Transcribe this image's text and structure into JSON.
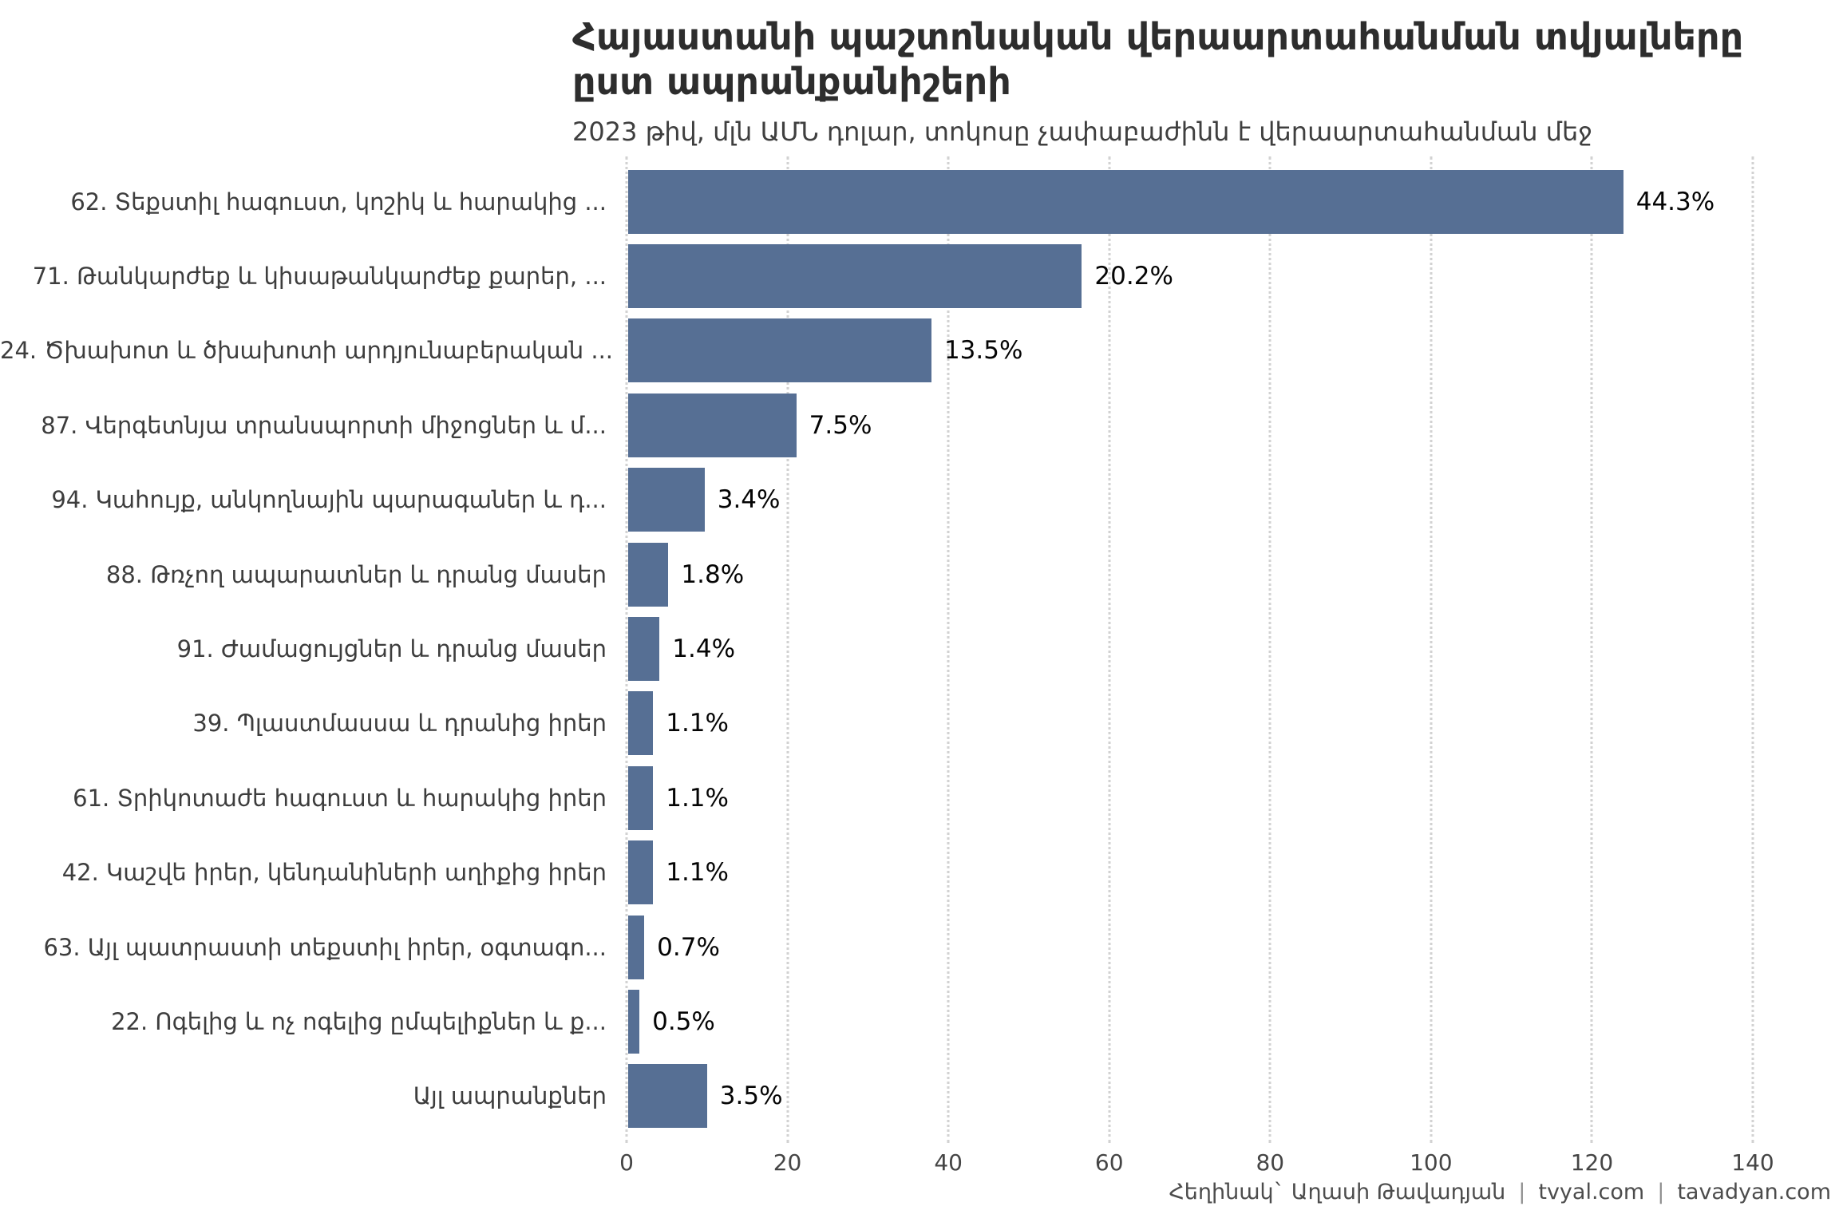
{
  "page": {
    "background": "#ffffff"
  },
  "header": {
    "title_line1": "Հայաստանի պաշտոնական վերաարտահանման տվյալները",
    "title_line2": "ըստ ապրանքանիշերի",
    "subtitle": "2023 թիվ, մլն ԱՄՆ դոլար, տոկոսը չափաբաժինն է վերաարտահանման մեջ"
  },
  "chart_data": {
    "type": "bar",
    "orientation": "horizontal",
    "title": "Հայաստանի պաշտոնական վերաարտահանման տվյալները ըստ ապրանքանիշերի",
    "subtitle": "2023 թիվ, մլն ԱՄՆ դոլար, տոկոսը չափաբաժինն է վերաարտահանման մեջ",
    "unit": "մլն ԱՄՆ դոլար",
    "categories": [
      "62. Տեքստիլ հագուստ, կոշիկ և հարակից ...",
      "71. Թանկարժեք և կիսաթանկարժեք քարեր, ...",
      "24. Ծխախոտ և ծխախոտի արդյունաբերական ...",
      "87. Վերգետնյա տրանսպորտի միջոցներ և մ...",
      "94. Կահույք, անկողնային պարագաներ և դ...",
      "88. Թռչող ապարատներ և դրանց մասեր",
      "91. Ժամացույցներ և դրանց մասեր",
      "39. Պլաստմասսա և դրանից իրեր",
      "61. Տրիկոտաժե հագուստ և հարակից իրեր",
      "42. Կաշվե իրեր, կենդանիների աղիքից իրեր",
      "63. Այլ պատրաստի տեքստիլ իրեր, օգտագո...",
      "22. Ոգելից և ոչ ոգելից ըմպելիքներ և ք...",
      "Այլ ապրանքներ"
    ],
    "values": [
      123.7,
      56.4,
      37.7,
      20.9,
      9.5,
      5.0,
      3.9,
      3.1,
      3.1,
      3.1,
      2.0,
      1.4,
      9.8
    ],
    "labels": [
      "44.3%",
      "20.2%",
      "13.5%",
      "7.5%",
      "3.4%",
      "1.8%",
      "1.4%",
      "1.1%",
      "1.1%",
      "1.1%",
      "0.7%",
      "0.5%",
      "3.5%"
    ],
    "xlim": [
      0,
      140
    ],
    "x_ticks": [
      0,
      20,
      40,
      60,
      80,
      100,
      120,
      140
    ],
    "grid": "vertical-dotted",
    "legend": "none",
    "bar_color": "#566f94",
    "gridline_color": "#d2d2d2"
  },
  "footer": {
    "credit": "Հեղինակ` Աղասի Թավադյան",
    "sep": "|",
    "site1": "tvyal.com",
    "site2": "tavadyan.com"
  }
}
